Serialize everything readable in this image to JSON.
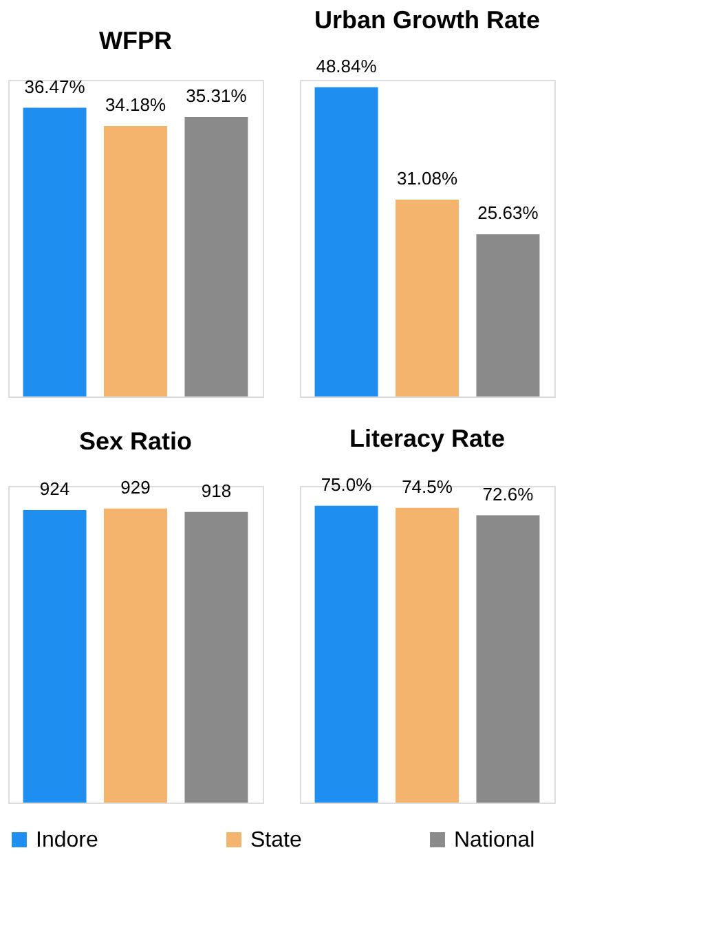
{
  "chart_data": [
    {
      "type": "bar",
      "title": "WFPR",
      "categories": [
        null
      ],
      "legend": "bottom",
      "tick_labels": false,
      "series": [
        {
          "name": "Indore",
          "color": "#1e8ff0",
          "values": [
            36.47
          ],
          "value_labels": [
            "36.47%"
          ]
        },
        {
          "name": "State",
          "color": "#f5b46e",
          "values": [
            34.18
          ],
          "value_labels": [
            "34.18%"
          ]
        },
        {
          "name": "National",
          "color": "#8a8a8a",
          "values": [
            35.31
          ],
          "value_labels": [
            "35.31%"
          ]
        }
      ]
    },
    {
      "type": "bar",
      "title": "Urban Growth Rate",
      "categories": [
        null
      ],
      "tick_labels": false,
      "series": [
        {
          "color": "#1e8ff0",
          "values": [
            48.84
          ],
          "value_labels": [
            "48.84%"
          ]
        },
        {
          "color": "#f5b46e",
          "values": [
            31.08
          ],
          "value_labels": [
            "31.08%"
          ]
        },
        {
          "color": "#8a8a8a",
          "values": [
            25.63
          ],
          "value_labels": [
            "25.63%"
          ]
        }
      ]
    },
    {
      "type": "bar",
      "title": "Sex Ratio",
      "categories": [
        null
      ],
      "tick_labels": false,
      "series": [
        {
          "color": "#1e8ff0",
          "values": [
            924
          ],
          "value_labels": [
            "924"
          ]
        },
        {
          "color": "#f5b46e",
          "values": [
            929
          ],
          "value_labels": [
            "929"
          ]
        },
        {
          "color": "#8a8a8a",
          "values": [
            918
          ],
          "value_labels": [
            "918"
          ]
        }
      ]
    },
    {
      "type": "bar",
      "title": "Literacy Rate",
      "categories": [
        null
      ],
      "tick_labels": false,
      "series": [
        {
          "color": "#1e8ff0",
          "values": [
            75.0
          ],
          "value_labels": [
            "75.0%"
          ]
        },
        {
          "color": "#f5b46e",
          "values": [
            74.5
          ],
          "value_labels": [
            "74.5%"
          ]
        },
        {
          "color": "#8a8a8a",
          "values": [
            72.6
          ],
          "value_labels": [
            "72.6%"
          ]
        }
      ]
    }
  ]
}
